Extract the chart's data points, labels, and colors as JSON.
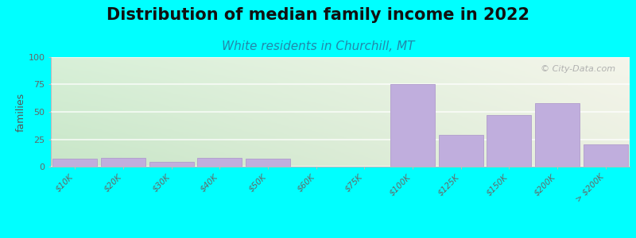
{
  "title": "Distribution of median family income in 2022",
  "subtitle": "White residents in Churchill, MT",
  "ylabel": "families",
  "categories": [
    "$10K",
    "$20K",
    "$30K",
    "$40K",
    "$50K",
    "$60K",
    "$75K",
    "$100K",
    "$125K",
    "$150K",
    "$200K",
    "> $200K"
  ],
  "values": [
    7,
    8,
    4,
    8,
    7,
    0,
    0,
    75,
    29,
    47,
    58,
    20
  ],
  "bar_color": "#c0aedd",
  "bar_edge_color": "#b09ccc",
  "background_color": "#00ffff",
  "ylim": [
    0,
    100
  ],
  "yticks": [
    0,
    25,
    50,
    75,
    100
  ],
  "watermark": "© City-Data.com",
  "title_fontsize": 15,
  "subtitle_fontsize": 11,
  "ylabel_fontsize": 9,
  "tick_fontsize": 7.5
}
